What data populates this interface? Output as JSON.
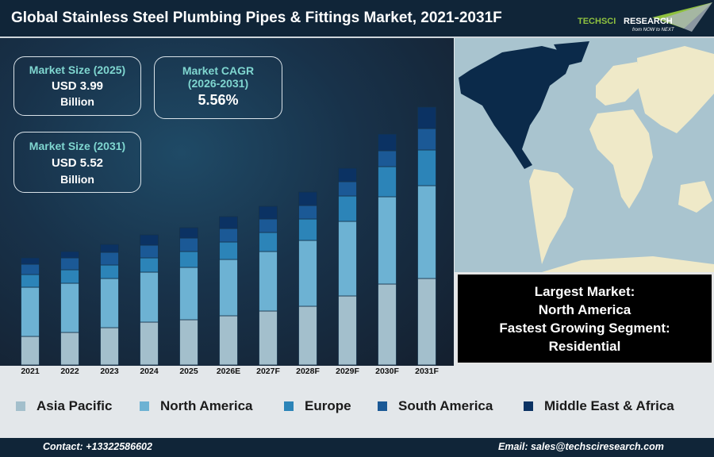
{
  "header": {
    "title": "Global Stainless Steel Plumbing Pipes & Fittings Market, 2021-2031F",
    "logo_text": "TECHSCI RESEARCH",
    "logo_tagline": "from NOW to NEXT"
  },
  "kpis": {
    "size_2025": {
      "label": "Market Size (2025)",
      "value": "USD 3.99",
      "unit": "Billion"
    },
    "cagr": {
      "label": "Market CAGR",
      "period": "(2026-2031)",
      "value": "5.56%"
    },
    "size_2031": {
      "label": "Market Size (2031)",
      "value": "USD 5.52",
      "unit": "Billion"
    }
  },
  "info": {
    "largest_label": "Largest Market:",
    "largest_value": "North America",
    "fastest_label": "Fastest Growing Segment:",
    "fastest_value": "Residential"
  },
  "footer": {
    "contact": "Contact: +13322586602",
    "email": "Email: sales@techsciresearch.com"
  },
  "chart_data": {
    "type": "bar",
    "stacked": true,
    "grid": false,
    "legend": "bottom",
    "categories": [
      "2021",
      "2022",
      "2023",
      "2024",
      "2025",
      "2026E",
      "2027F",
      "2028F",
      "2029F",
      "2030F",
      "2031F"
    ],
    "ylim": [
      0,
      330
    ],
    "series": [
      {
        "name": "Asia Pacific",
        "color": "#a3bfcc",
        "values": [
          36,
          41,
          47,
          54,
          57,
          62,
          68,
          74,
          87,
          102,
          109
        ]
      },
      {
        "name": "North America",
        "color": "#6db2d3",
        "values": [
          62,
          62,
          62,
          63,
          66,
          71,
          75,
          83,
          94,
          110,
          117
        ]
      },
      {
        "name": "Europe",
        "color": "#2c84b8",
        "values": [
          16,
          17,
          17,
          18,
          20,
          22,
          24,
          27,
          32,
          38,
          45
        ]
      },
      {
        "name": "South America",
        "color": "#1b5996",
        "values": [
          13,
          15,
          16,
          16,
          17,
          17,
          17,
          17,
          18,
          20,
          27
        ]
      },
      {
        "name": "Middle East & Africa",
        "color": "#0b3263",
        "values": [
          8,
          8,
          10,
          13,
          13,
          15,
          16,
          17,
          17,
          21,
          27
        ]
      }
    ]
  }
}
